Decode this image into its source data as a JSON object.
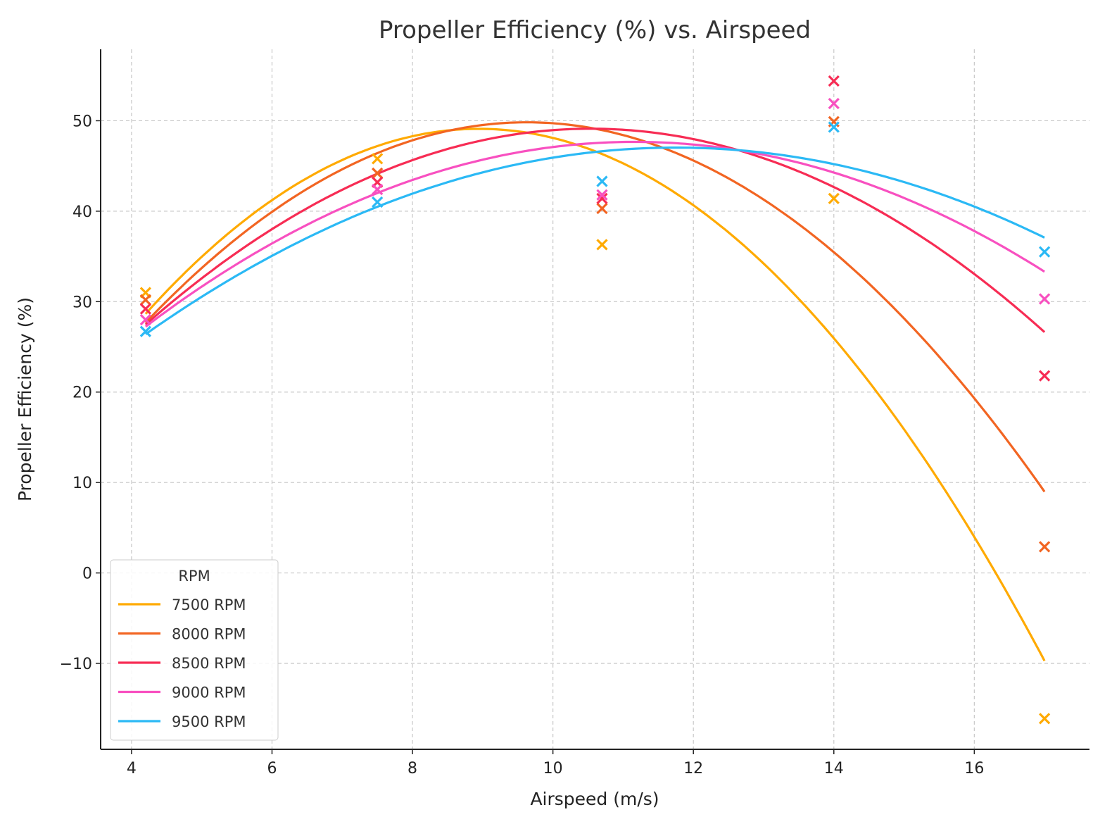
{
  "chart_data": {
    "type": "line",
    "title": "Propeller Efficiency (%) vs. Airspeed",
    "xlabel": "Airspeed (m/s)",
    "ylabel": "Propeller Efficiency (%)",
    "xlim": [
      3.56,
      17.64
    ],
    "ylim": [
      -19.5,
      57.9
    ],
    "xticks": [
      4,
      6,
      8,
      10,
      12,
      14,
      16
    ],
    "yticks": [
      -10,
      0,
      10,
      20,
      30,
      40,
      50
    ],
    "ytick_labels": [
      "−10",
      "0",
      "10",
      "20",
      "30",
      "40",
      "50"
    ],
    "grid": true,
    "legend": {
      "title": "RPM",
      "placement": "lower-left"
    },
    "x": [
      4.2,
      7.5,
      10.7,
      14.0,
      17.0
    ],
    "curve_fit": "quadratic",
    "marker": "x",
    "series": [
      {
        "name": "7500 RPM",
        "color": "#ffaa00",
        "values": [
          31.0,
          45.8,
          36.3,
          41.4,
          -16.1
        ]
      },
      {
        "name": "8000 RPM",
        "color": "#f26522",
        "values": [
          30.2,
          44.2,
          40.3,
          49.9,
          2.9
        ]
      },
      {
        "name": "8500 RPM",
        "color": "#f72c54",
        "values": [
          29.2,
          43.2,
          41.4,
          54.4,
          21.8
        ]
      },
      {
        "name": "9000 RPM",
        "color": "#f850c0",
        "values": [
          28.0,
          42.4,
          41.8,
          51.9,
          30.3
        ]
      },
      {
        "name": "9500 RPM",
        "color": "#2bb9f5",
        "values": [
          26.7,
          41.0,
          43.3,
          49.3,
          35.5
        ]
      }
    ]
  }
}
